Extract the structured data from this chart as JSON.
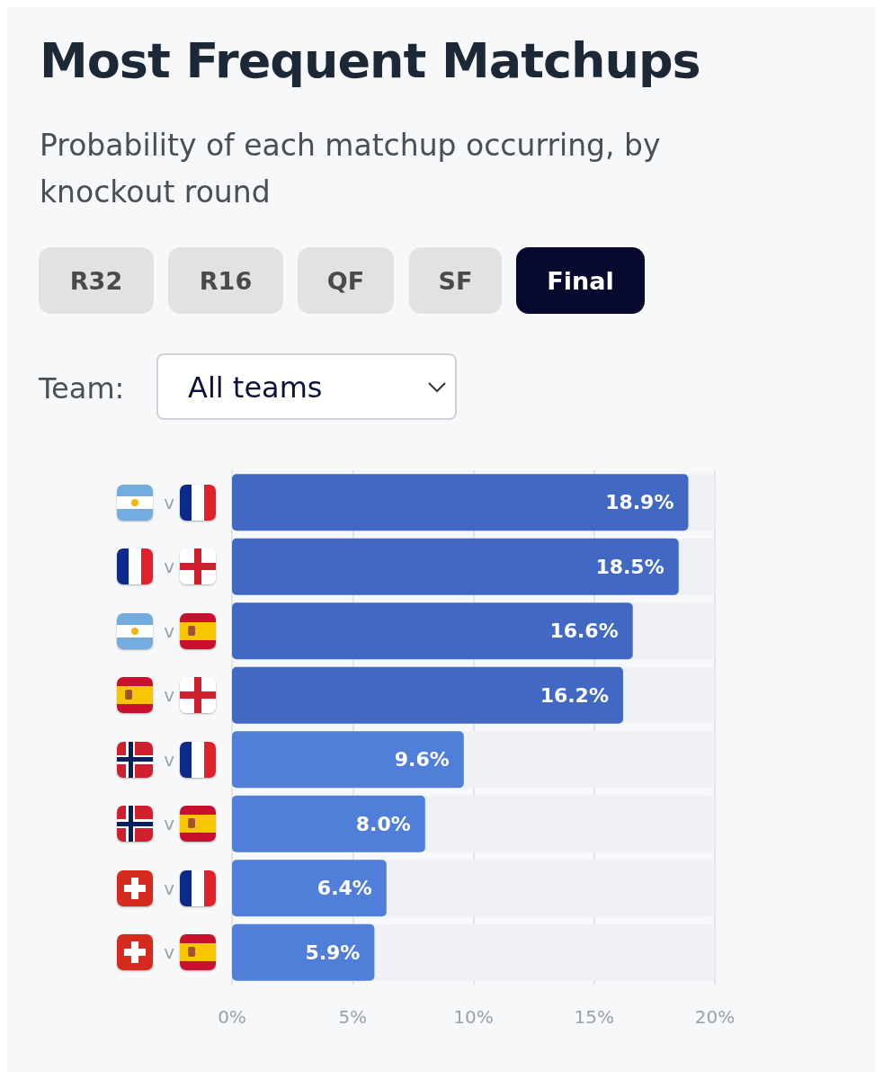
{
  "chart_data": {
    "type": "bar",
    "orientation": "horizontal",
    "title": "Most Frequent Matchups",
    "subtitle": "Probability of each matchup occurring, by knockout round",
    "annotations": [
      "R32",
      "R16",
      "QF",
      "SF",
      "Final",
      "Team:",
      "All teams"
    ],
    "categories": [
      "v",
      "v",
      "v",
      "v",
      "v",
      "v",
      "v",
      "v"
    ],
    "values": [
      18.9,
      18.5,
      16.6,
      16.2,
      9.6,
      8.0,
      6.4,
      5.9
    ],
    "colors": [
      "#4169c4",
      "#4169c4",
      "#4169c4",
      "#4169c4",
      "#507fd9",
      "#507fd9",
      "#507fd9",
      "#507fd9"
    ],
    "value_labels": [
      "18.9%",
      "18.5%",
      "16.6%",
      "16.2%",
      "9.6%",
      "8.0%",
      "6.4%",
      "5.9%"
    ],
    "xlim": [
      0,
      20
    ],
    "xticks": [
      {
        "value": 0,
        "label": "0%"
      },
      {
        "value": 5,
        "label": "5%"
      },
      {
        "value": 10,
        "label": "10%"
      },
      {
        "value": 15,
        "label": "15%"
      },
      {
        "value": 20,
        "label": "20%"
      }
    ],
    "grid": "x"
  }
}
